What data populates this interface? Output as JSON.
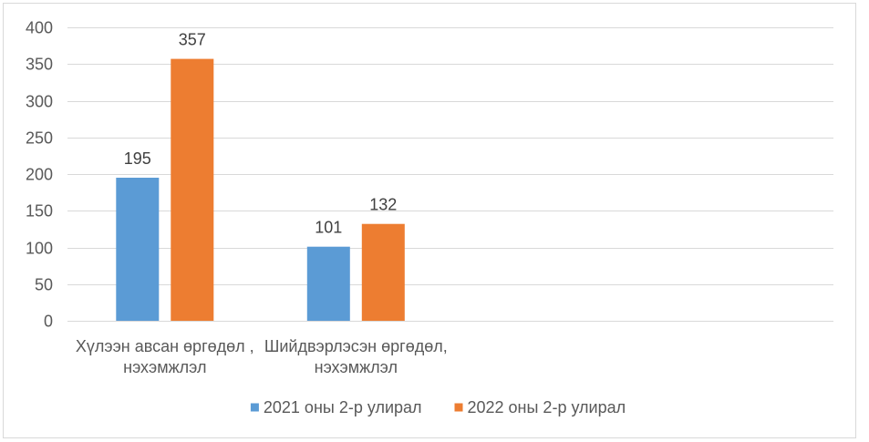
{
  "chart_data": {
    "type": "bar",
    "categories": [
      "Хүлээн авсан өргөдөл , нэхэмжлэл",
      "Шийдвэрлэсэн өргөдөл, нэхэмжлэл"
    ],
    "series": [
      {
        "name": "2021 оны 2-р улирал",
        "values": [
          195,
          101
        ],
        "color": "#5B9BD5"
      },
      {
        "name": "2022 оны 2-р улирал",
        "values": [
          357,
          132
        ],
        "color": "#ED7D31"
      }
    ],
    "ylim": [
      0,
      400
    ],
    "yticks": [
      0,
      50,
      100,
      150,
      200,
      250,
      300,
      350,
      400
    ],
    "grid": true,
    "data_labels": true,
    "legend_position": "bottom"
  }
}
